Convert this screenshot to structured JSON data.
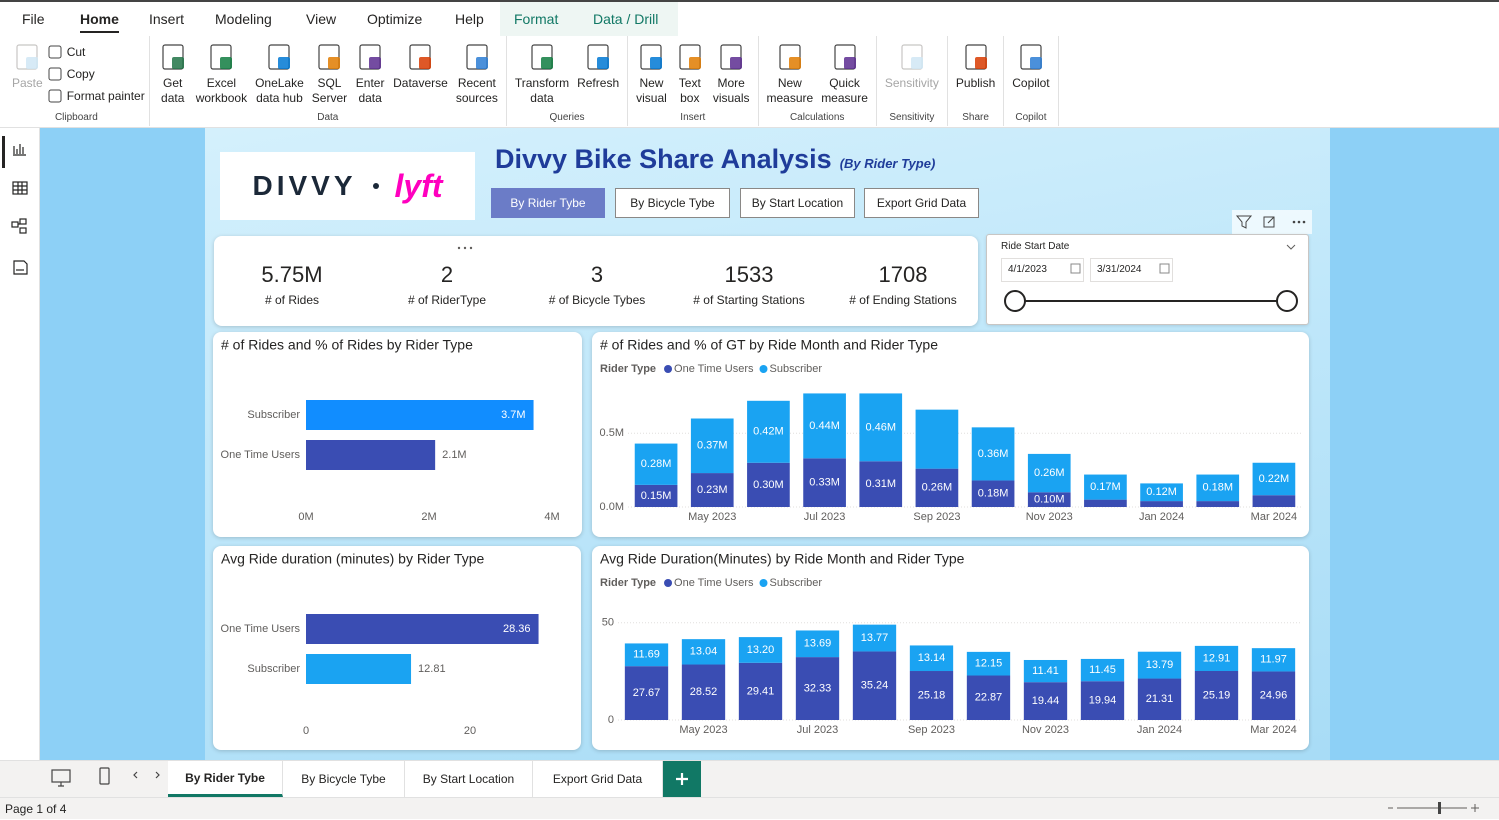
{
  "ribbon": {
    "tabs": [
      "File",
      "Home",
      "Insert",
      "Modeling",
      "View",
      "Optimize",
      "Help",
      "Format",
      "Data / Drill"
    ],
    "groups": [
      {
        "name": "Clipboard",
        "buttons": [
          [
            "Paste"
          ],
          [
            "Cut"
          ],
          [
            "Copy"
          ],
          [
            "Format painter"
          ]
        ]
      },
      {
        "name": "Data",
        "buttons": [
          [
            "Get",
            "data"
          ],
          [
            "Excel",
            "workbook"
          ],
          [
            "OneLake",
            "data hub"
          ],
          [
            "SQL",
            "Server"
          ],
          [
            "Enter",
            "data"
          ],
          [
            "Dataverse"
          ],
          [
            "Recent",
            "sources"
          ]
        ]
      },
      {
        "name": "Queries",
        "buttons": [
          [
            "Transform",
            "data"
          ],
          [
            "Refresh"
          ]
        ]
      },
      {
        "name": "Insert",
        "buttons": [
          [
            "New",
            "visual"
          ],
          [
            "Text",
            "box"
          ],
          [
            "More",
            "visuals"
          ]
        ]
      },
      {
        "name": "Calculations",
        "buttons": [
          [
            "New",
            "measure"
          ],
          [
            "Quick",
            "measure"
          ]
        ]
      },
      {
        "name": "Sensitivity",
        "buttons": [
          [
            "Sensitivity"
          ]
        ]
      },
      {
        "name": "Share",
        "buttons": [
          [
            "Publish"
          ]
        ]
      },
      {
        "name": "Copilot",
        "buttons": [
          [
            "Copilot"
          ]
        ]
      }
    ]
  },
  "report": {
    "logo": [
      "DIVVY",
      "lyft"
    ],
    "title": "Divvy Bike Share Analysis",
    "subtitle": "(By Rider Type)",
    "buttons": [
      "By Rider Tybe",
      "By Bicycle Tybe",
      "By Start Location",
      "Export Grid Data"
    ],
    "kpis": [
      {
        "value": "5.75M",
        "label": "# of Rides"
      },
      {
        "value": "2",
        "label": "# of RiderType"
      },
      {
        "value": "3",
        "label": "# of Bicycle Tybes"
      },
      {
        "value": "1533",
        "label": "# of Starting Stations"
      },
      {
        "value": "1708",
        "label": "# of Ending Stations"
      }
    ],
    "slicer": {
      "title": "Ride Start Date",
      "start": "4/1/2023",
      "end": "3/31/2024"
    }
  },
  "chart_data": [
    {
      "type": "hbar",
      "title": "# of Rides and % of Rides by Rider Type",
      "categories": [
        "Subscriber",
        "One Time Users"
      ],
      "values": [
        3.7,
        2.1
      ],
      "value_labels": [
        "3.7M",
        "2.1M"
      ],
      "colors": [
        "#118dff",
        "#3a4db3"
      ],
      "xlim": [
        0,
        4
      ],
      "xticks": [
        {
          "value": 0,
          "label": "0M"
        },
        {
          "value": 2,
          "label": "2M"
        },
        {
          "value": 4,
          "label": "4M"
        }
      ]
    },
    {
      "type": "stacked_bar",
      "title": "# of Rides and % of GT by Ride Month and Rider Type",
      "legend_title": "Rider Type",
      "categories": [
        null,
        "May 2023",
        null,
        "Jul 2023",
        null,
        "Sep 2023",
        null,
        "Nov 2023",
        null,
        "Jan 2024",
        null,
        "Mar 2024"
      ],
      "series": [
        {
          "name": "One Time Users",
          "color": "#3a4db3",
          "values": [
            0.15,
            0.23,
            0.3,
            0.33,
            0.31,
            0.26,
            0.18,
            0.1,
            0.05,
            0.04,
            0.04,
            0.08
          ],
          "value_labels": [
            "0.15M",
            "0.23M",
            "0.30M",
            "0.33M",
            "0.31M",
            "0.26M",
            "0.18M",
            "0.10M",
            null,
            null,
            null,
            null
          ]
        },
        {
          "name": "Subscriber",
          "color": "#1aa3f2",
          "values": [
            0.28,
            0.37,
            0.42,
            0.44,
            0.46,
            0.4,
            0.36,
            0.26,
            0.17,
            0.12,
            0.18,
            0.22
          ],
          "value_labels": [
            "0.28M",
            "0.37M",
            "0.42M",
            "0.44M",
            "0.46M",
            null,
            "0.36M",
            "0.26M",
            "0.17M",
            "0.12M",
            "0.18M",
            "0.22M"
          ]
        }
      ],
      "ylim": [
        0,
        0.8
      ],
      "yticks": [
        {
          "value": 0,
          "label": "0.0M"
        },
        {
          "value": 0.5,
          "label": "0.5M"
        }
      ],
      "grid": true
    },
    {
      "type": "hbar",
      "title": "Avg Ride duration (minutes) by Rider Type",
      "categories": [
        "One Time Users",
        "Subscriber"
      ],
      "values": [
        28.36,
        12.81
      ],
      "colors": [
        "#3a4db3",
        "#1aa3f2"
      ],
      "xlim": [
        0,
        30
      ],
      "xticks": [
        0,
        20
      ]
    },
    {
      "type": "stacked_bar",
      "title": "Avg Ride Duration(Minutes) by Ride Month and Rider Type",
      "legend_title": "Rider Type",
      "categories": [
        null,
        "May 2023",
        null,
        "Jul 2023",
        null,
        "Sep 2023",
        null,
        "Nov 2023",
        null,
        "Jan 2024",
        null,
        "Mar 2024"
      ],
      "series": [
        {
          "name": "One Time Users",
          "color": "#3a4db3",
          "values": [
            27.67,
            28.52,
            29.41,
            32.33,
            35.24,
            25.18,
            22.87,
            19.44,
            19.94,
            21.31,
            25.19,
            24.96
          ],
          "value_labels": [
            "27.67",
            "28.52",
            "29.41",
            "32.33",
            "35.24",
            "25.18",
            "22.87",
            "19.44",
            "19.94",
            "21.31",
            "25.19",
            "24.96"
          ]
        },
        {
          "name": "Subscriber",
          "color": "#1aa3f2",
          "values": [
            11.69,
            13.04,
            13.2,
            13.69,
            13.77,
            13.14,
            12.15,
            11.41,
            11.45,
            13.79,
            12.91,
            11.97
          ],
          "value_labels": [
            "11.69",
            "13.04",
            "13.20",
            "13.69",
            "13.77",
            "13.14",
            "12.15",
            "11.41",
            "11.45",
            "13.79",
            "12.91",
            "11.97"
          ]
        }
      ],
      "ylim": [
        0,
        55
      ],
      "yticks": [
        0,
        50
      ],
      "grid": true
    }
  ],
  "page_tabs": [
    "By Rider Tybe",
    "By Bicycle Tybe",
    "By Start Location",
    "Export Grid Data"
  ],
  "status": "Page 1 of 4"
}
